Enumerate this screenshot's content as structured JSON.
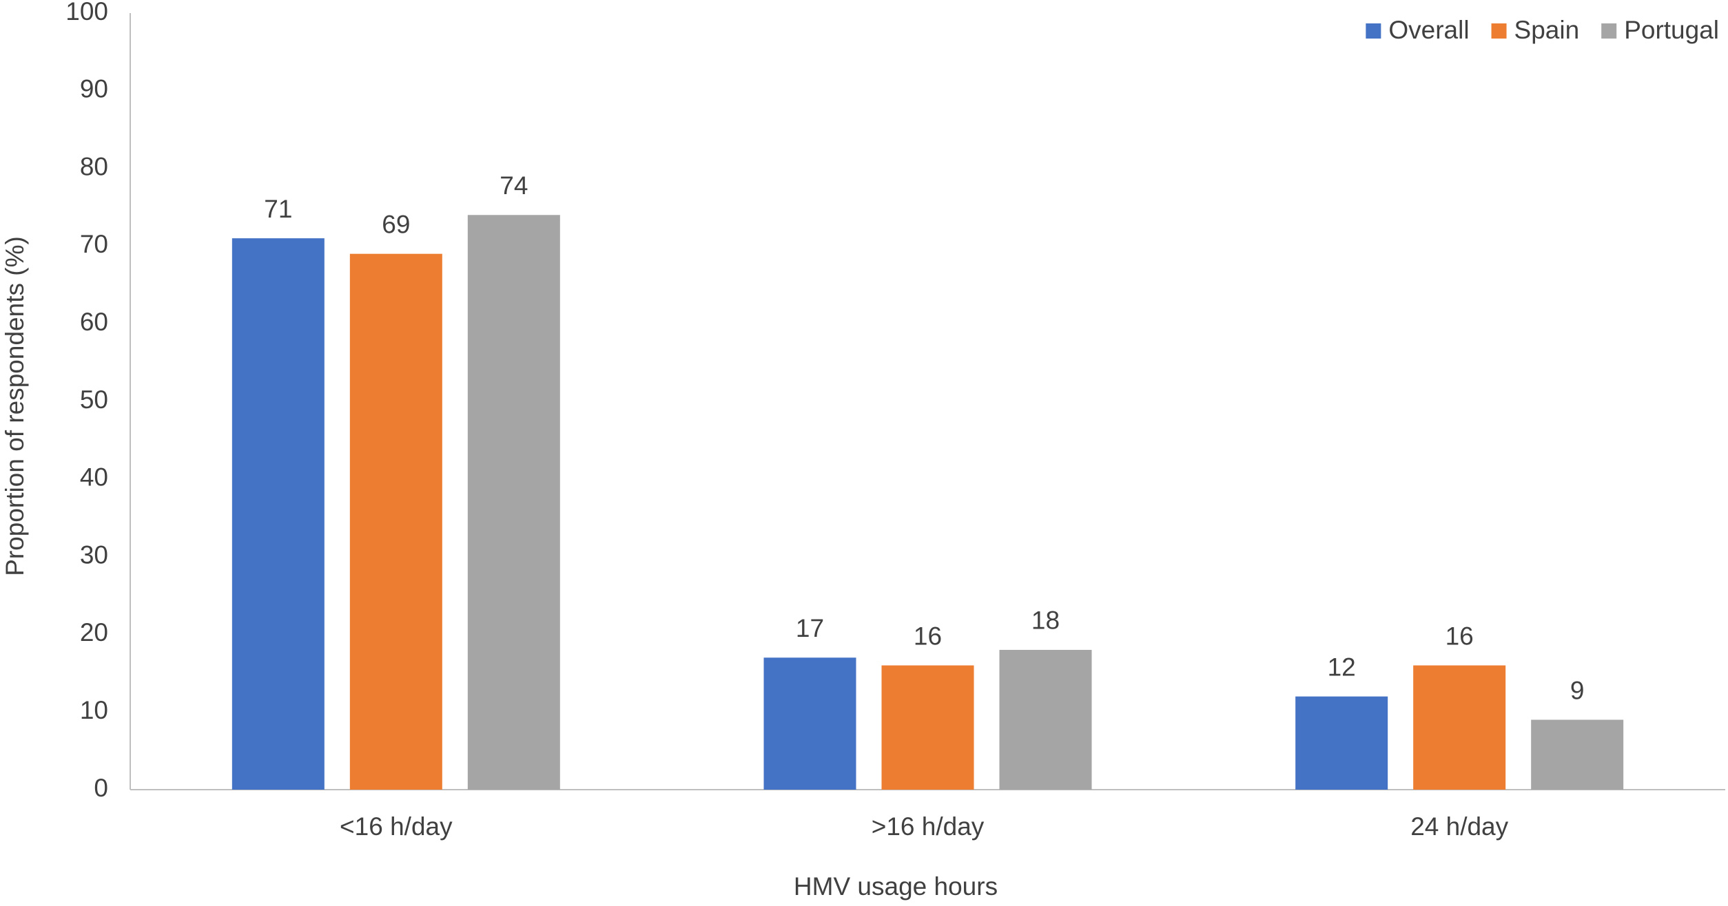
{
  "chart_data": {
    "type": "bar",
    "x_label": "HMV usage hours",
    "y_label": "Proportion of respondents (%)",
    "categories": [
      "<16 h/day",
      ">16 h/day",
      "24 h/day"
    ],
    "series": [
      {
        "name": "Overall",
        "color": "#4472c4",
        "values": [
          71,
          17,
          12
        ]
      },
      {
        "name": "Spain",
        "color": "#ed7d31",
        "values": [
          69,
          16,
          16
        ]
      },
      {
        "name": "Portugal",
        "color": "#a5a5a5",
        "values": [
          74,
          18,
          9
        ]
      }
    ],
    "ylim": [
      0,
      100
    ],
    "yticks": [
      0,
      10,
      20,
      30,
      40,
      50,
      60,
      70,
      80,
      90,
      100
    ],
    "grid": false,
    "legend": "top-right",
    "data_labels": true
  }
}
